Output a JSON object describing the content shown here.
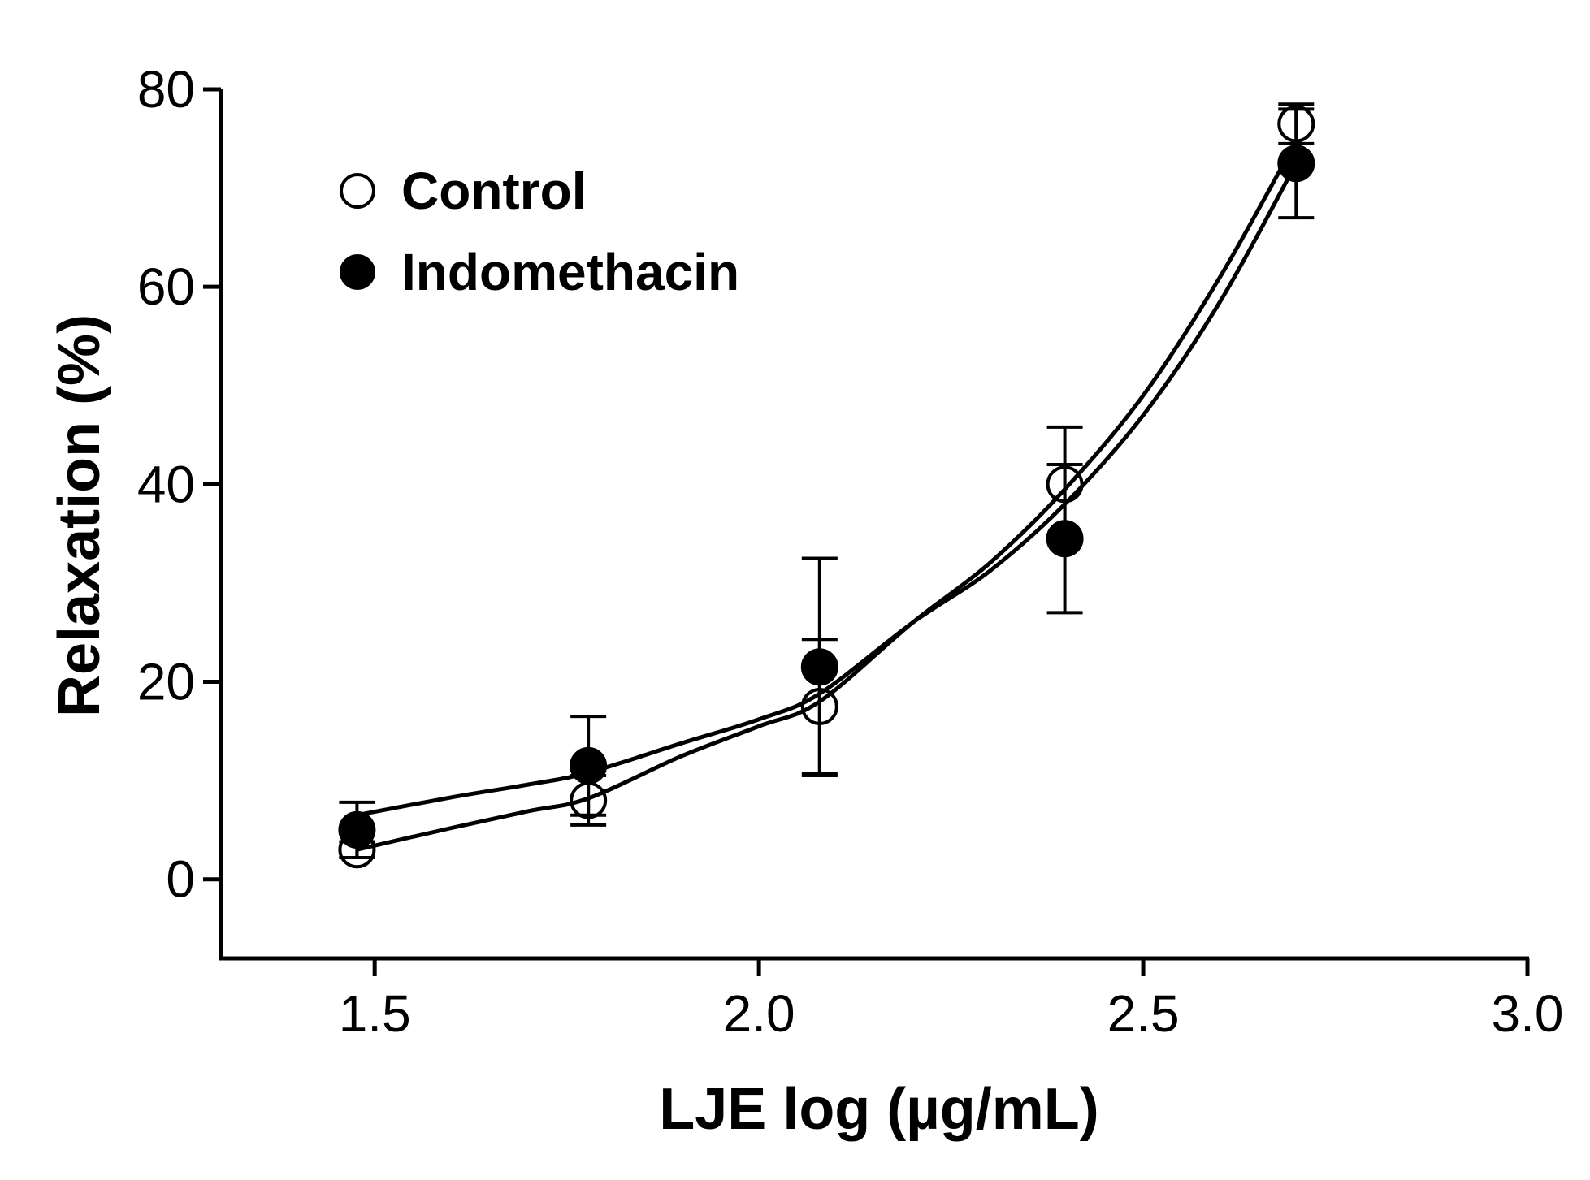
{
  "chart_data": {
    "type": "scatter",
    "title": "",
    "xlabel": "LJE log (µg/mL)",
    "ylabel": "Relaxation (%)",
    "xlim": [
      1.3,
      3.0
    ],
    "ylim": [
      -8,
      80
    ],
    "xticks": [
      1.5,
      2.0,
      2.5,
      3.0
    ],
    "xtick_labels": [
      "1.5",
      "2.0",
      "2.5",
      "3.0"
    ],
    "yticks": [
      0,
      20,
      40,
      60,
      80
    ],
    "ytick_labels": [
      "0",
      "20",
      "40",
      "60",
      "80"
    ],
    "grid": false,
    "legend_position": "top-left",
    "series": [
      {
        "name": "Control",
        "marker": "open-circle",
        "color": "#000000",
        "x": [
          1.477,
          1.778,
          2.079,
          2.398,
          2.699
        ],
        "y": [
          3,
          8,
          17.5,
          40,
          76.5
        ],
        "err": [
          0.8,
          2.5,
          6.8,
          5.8,
          2
        ],
        "fit": [
          [
            1.477,
            3
          ],
          [
            1.6,
            5.2
          ],
          [
            1.7,
            6.9
          ],
          [
            1.778,
            8.2
          ],
          [
            1.9,
            12.5
          ],
          [
            2.0,
            15.5
          ],
          [
            2.079,
            18
          ],
          [
            2.2,
            26
          ],
          [
            2.3,
            32
          ],
          [
            2.398,
            39.5
          ],
          [
            2.5,
            49
          ],
          [
            2.6,
            61
          ],
          [
            2.699,
            74.8
          ]
        ]
      },
      {
        "name": "Indomethacin",
        "marker": "filled-circle",
        "color": "#000000",
        "x": [
          1.477,
          1.778,
          2.079,
          2.398,
          2.699
        ],
        "y": [
          5,
          11.5,
          21.5,
          34.5,
          72.5
        ],
        "err": [
          2.8,
          5,
          11,
          7.5,
          5.5
        ],
        "fit": [
          [
            1.477,
            6.5
          ],
          [
            1.6,
            8.3
          ],
          [
            1.7,
            9.6
          ],
          [
            1.778,
            10.8
          ],
          [
            1.9,
            13.8
          ],
          [
            2.0,
            16.2
          ],
          [
            2.079,
            18.8
          ],
          [
            2.2,
            26
          ],
          [
            2.3,
            31.2
          ],
          [
            2.398,
            38
          ],
          [
            2.5,
            47
          ],
          [
            2.6,
            58.5
          ],
          [
            2.699,
            72.5
          ]
        ]
      }
    ]
  }
}
